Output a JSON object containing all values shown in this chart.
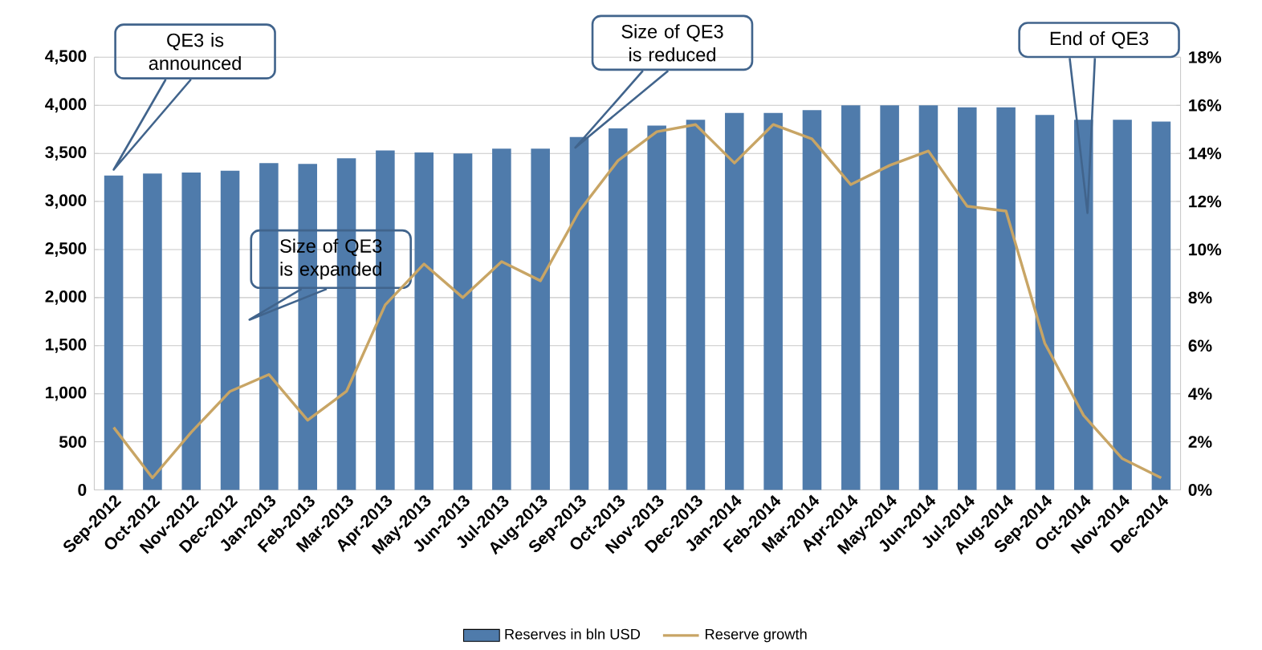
{
  "chart_data": {
    "type": "bar",
    "categories": [
      "Sep-2012",
      "Oct-2012",
      "Nov-2012",
      "Dec-2012",
      "Jan-2013",
      "Feb-2013",
      "Mar-2013",
      "Apr-2013",
      "May-2013",
      "Jun-2013",
      "Jul-2013",
      "Aug-2013",
      "Sep-2013",
      "Oct-2013",
      "Nov-2013",
      "Dec-2013",
      "Jan-2014",
      "Feb-2014",
      "Mar-2014",
      "Apr-2014",
      "May-2014",
      "Jun-2014",
      "Jul-2014",
      "Aug-2014",
      "Sep-2014",
      "Oct-2014",
      "Nov-2014",
      "Dec-2014"
    ],
    "series": [
      {
        "name": "Reserves in bln USD",
        "color": "#4f7bab",
        "values": [
          3270,
          3290,
          3300,
          3320,
          3400,
          3390,
          3450,
          3530,
          3510,
          3500,
          3550,
          3550,
          3670,
          3760,
          3790,
          3850,
          3920,
          3920,
          3950,
          4000,
          4000,
          4000,
          3980,
          3980,
          3900,
          3850,
          3850,
          3830
        ]
      },
      {
        "name": "Reserve growth",
        "type": "line",
        "axis": "y2",
        "color": "#c8a565",
        "values": [
          2.6,
          0.5,
          2.4,
          4.1,
          4.8,
          2.9,
          4.1,
          7.7,
          9.4,
          8.0,
          9.5,
          8.7,
          11.6,
          13.7,
          14.9,
          15.2,
          13.6,
          15.2,
          14.6,
          12.7,
          13.5,
          14.1,
          11.8,
          11.6,
          6.1,
          3.1,
          1.3,
          0.5
        ]
      }
    ],
    "ylim": [
      0,
      4500
    ],
    "yticks": [
      0,
      500,
      {
        "value": 1000,
        "label": "1,000"
      },
      {
        "value": 1500,
        "label": "1,500"
      },
      {
        "value": 2000,
        "label": "2,000"
      },
      {
        "value": 2500,
        "label": "2,500"
      },
      {
        "value": 3000,
        "label": "3,000"
      },
      {
        "value": 3500,
        "label": "3,500"
      },
      {
        "value": 4000,
        "label": "4,000"
      },
      {
        "value": 4500,
        "label": "4,500"
      }
    ],
    "y2lim": [
      0,
      18
    ],
    "y2ticks": [
      {
        "value": 0,
        "label": "0%"
      },
      {
        "value": 2,
        "label": "2%"
      },
      {
        "value": 4,
        "label": "4%"
      },
      {
        "value": 6,
        "label": "6%"
      },
      {
        "value": 8,
        "label": "8%"
      },
      {
        "value": 10,
        "label": "10%"
      },
      {
        "value": 12,
        "label": "12%"
      },
      {
        "value": 14,
        "label": "14%"
      },
      {
        "value": 16,
        "label": "16%"
      },
      {
        "value": 18,
        "label": "18%"
      }
    ],
    "grid": "y",
    "legend": "bottom",
    "annotations": [
      "QE3 is announced",
      "Size of QE3 is expanded",
      "Size of QE3 is reduced",
      "End of QE3"
    ]
  }
}
